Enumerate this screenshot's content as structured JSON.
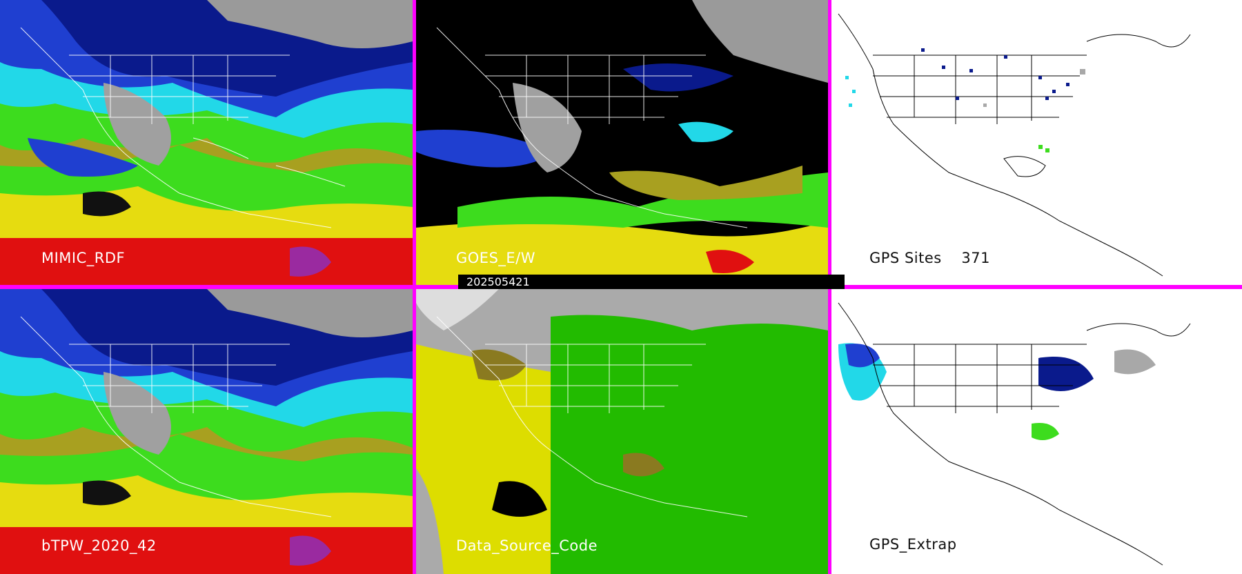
{
  "panels": [
    {
      "id": "p1",
      "label": "MIMIC_RDF",
      "theme": "color"
    },
    {
      "id": "p2",
      "label": "GOES_E/W",
      "theme": "goes"
    },
    {
      "id": "p3",
      "label": "GPS Sites",
      "count": "371",
      "theme": "white"
    },
    {
      "id": "p4",
      "label": "bTPW_2020_42",
      "theme": "color"
    },
    {
      "id": "p5",
      "label": "Data_Source_Code",
      "theme": "source"
    },
    {
      "id": "p6",
      "label": "GPS_Extrap",
      "theme": "white"
    }
  ],
  "date_stamp": "202505421",
  "colors": {
    "separator": "#ff00ff",
    "deep_blue": "#0a1a8c",
    "blue": "#1f3fd0",
    "cyan": "#22d8e8",
    "green": "#3ddc1e",
    "olive": "#a8a020",
    "yellow": "#e6dc10",
    "red": "#e01010",
    "purple": "#9a2aa0",
    "gray": "#a8a8a8",
    "source_gray": "#aaaaaa",
    "source_green": "#22bb00",
    "source_yellow": "#dddd00",
    "source_olive": "#8a7a20"
  }
}
